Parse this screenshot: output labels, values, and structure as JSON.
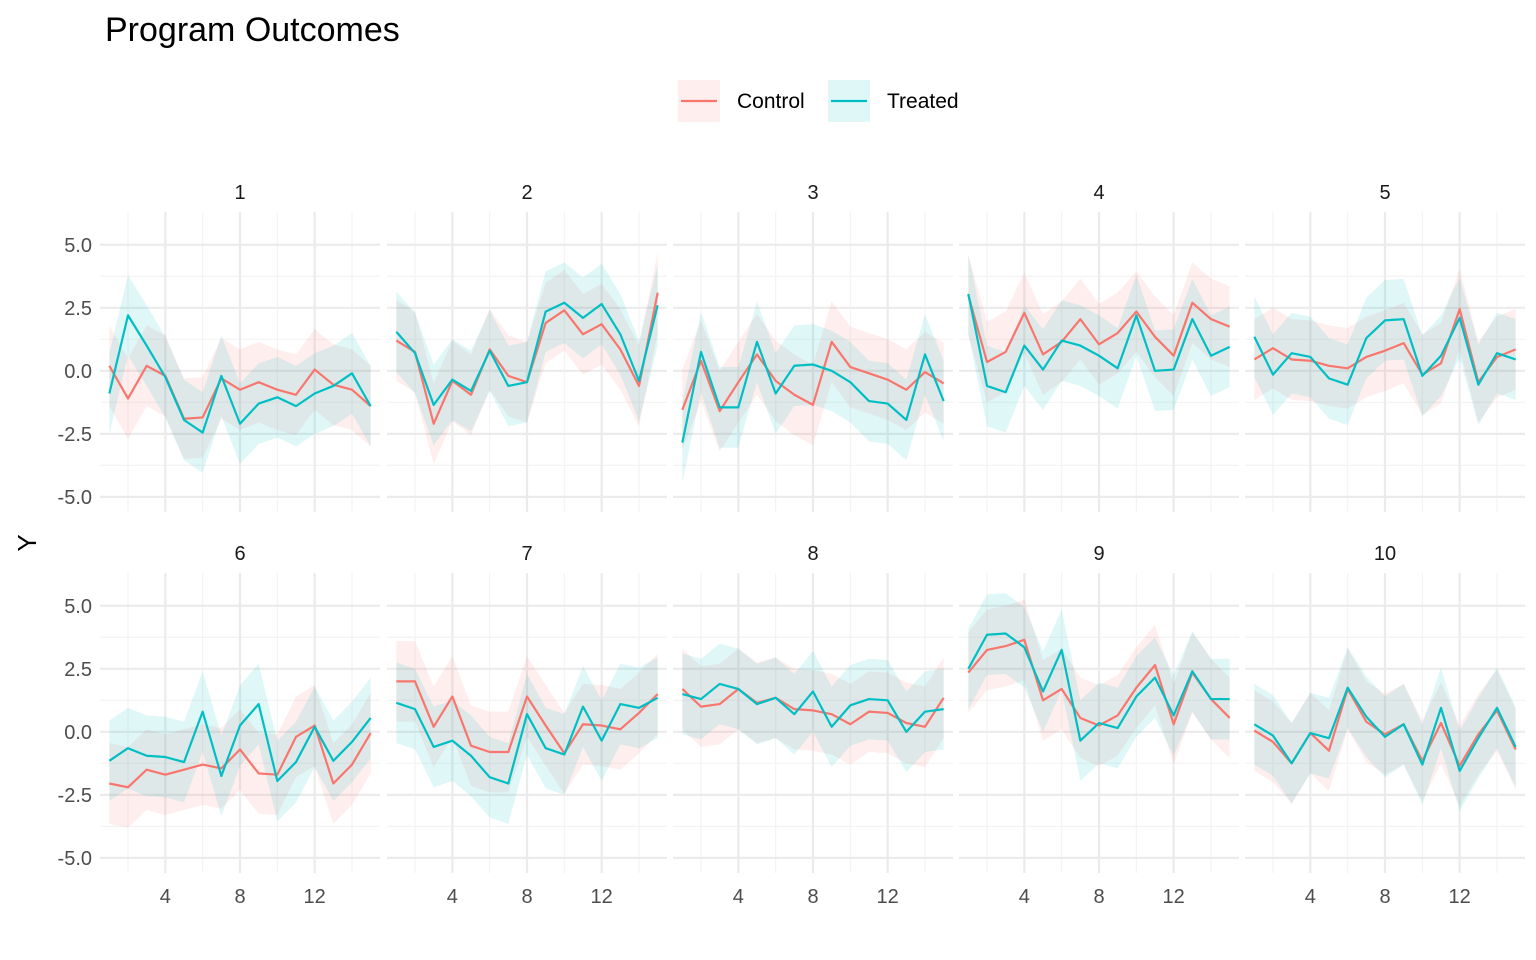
{
  "chart_data": {
    "type": "line",
    "title": "Program Outcomes",
    "ylabel": "Y",
    "xlabel": "",
    "x": [
      1,
      2,
      3,
      4,
      5,
      6,
      7,
      8,
      9,
      10,
      11,
      12,
      13,
      14,
      15
    ],
    "xlim": [
      0.5,
      15.5
    ],
    "ylim": [
      -5.6,
      6.3
    ],
    "x_ticks": [
      4,
      8,
      12
    ],
    "y_ticks": [
      5,
      2.5,
      0,
      -2.5,
      -5
    ],
    "y_tick_labels": [
      "5.0",
      "2.5",
      "0.0",
      "-2.5",
      "-5.0"
    ],
    "grid": true,
    "legend_position": "top",
    "series_meta": [
      {
        "name": "Control",
        "color": "#F8766D"
      },
      {
        "name": "Treated",
        "color": "#00BFC4"
      }
    ],
    "ribbon_halfwidth": 1.6,
    "facets": [
      {
        "label": "1",
        "control": [
          0.2,
          -1.1,
          0.2,
          -0.2,
          -1.9,
          -1.85,
          -0.3,
          -0.75,
          -0.45,
          -0.75,
          -0.95,
          0.05,
          -0.55,
          -0.75,
          -1.4
        ],
        "treated": [
          -0.9,
          2.2,
          1.0,
          -0.25,
          -1.95,
          -2.45,
          -0.2,
          -2.1,
          -1.3,
          -1.05,
          -1.4,
          -0.9,
          -0.6,
          -0.1,
          -1.4
        ]
      },
      {
        "label": "2",
        "control": [
          1.2,
          0.75,
          -2.1,
          -0.4,
          -0.95,
          0.85,
          -0.2,
          -0.45,
          1.9,
          2.4,
          1.45,
          1.85,
          0.85,
          -0.6,
          3.1
        ],
        "treated": [
          1.55,
          0.7,
          -1.35,
          -0.35,
          -0.8,
          0.8,
          -0.6,
          -0.45,
          2.35,
          2.7,
          2.1,
          2.65,
          1.45,
          -0.4,
          2.6
        ]
      },
      {
        "label": "3",
        "control": [
          -1.55,
          0.4,
          -1.6,
          -0.45,
          0.65,
          -0.4,
          -0.95,
          -1.35,
          1.15,
          0.15,
          -0.1,
          -0.35,
          -0.75,
          -0.05,
          -0.5
        ],
        "treated": [
          -2.85,
          0.75,
          -1.45,
          -1.45,
          1.15,
          -0.9,
          0.2,
          0.25,
          0.0,
          -0.45,
          -1.2,
          -1.3,
          -1.95,
          0.65,
          -1.2
        ]
      },
      {
        "label": "4",
        "control": [
          3.0,
          0.35,
          0.75,
          2.3,
          0.65,
          1.15,
          2.05,
          1.05,
          1.5,
          2.35,
          1.35,
          0.6,
          2.7,
          2.05,
          1.75
        ],
        "treated": [
          3.05,
          -0.6,
          -0.85,
          1.0,
          0.05,
          1.2,
          1.0,
          0.6,
          0.1,
          2.2,
          0.0,
          0.05,
          2.05,
          0.6,
          0.95
        ]
      },
      {
        "label": "5",
        "control": [
          0.45,
          0.9,
          0.45,
          0.4,
          0.2,
          0.1,
          0.55,
          0.8,
          1.1,
          -0.15,
          0.3,
          2.45,
          -0.45,
          0.55,
          0.85
        ],
        "treated": [
          1.35,
          -0.15,
          0.7,
          0.55,
          -0.3,
          -0.55,
          1.3,
          2.0,
          2.05,
          -0.2,
          0.6,
          2.1,
          -0.55,
          0.7,
          0.45
        ]
      },
      {
        "label": "6",
        "control": [
          -2.05,
          -2.2,
          -1.5,
          -1.7,
          -1.5,
          -1.3,
          -1.45,
          -0.7,
          -1.65,
          -1.7,
          -0.2,
          0.25,
          -2.05,
          -1.3,
          -0.05
        ],
        "treated": [
          -1.15,
          -0.65,
          -0.95,
          -1.0,
          -1.2,
          0.8,
          -1.75,
          0.25,
          1.1,
          -1.95,
          -1.2,
          0.2,
          -1.15,
          -0.4,
          0.55
        ]
      },
      {
        "label": "7",
        "control": [
          2.0,
          2.0,
          0.2,
          1.4,
          -0.55,
          -0.8,
          -0.8,
          1.4,
          0.25,
          -0.85,
          0.3,
          0.25,
          0.1,
          0.75,
          1.5
        ],
        "treated": [
          1.15,
          0.9,
          -0.6,
          -0.35,
          -0.95,
          -1.8,
          -2.05,
          0.7,
          -0.65,
          -0.9,
          1.0,
          -0.35,
          1.1,
          0.95,
          1.35
        ]
      },
      {
        "label": "8",
        "control": [
          1.7,
          1.0,
          1.1,
          1.7,
          1.15,
          1.35,
          0.9,
          0.85,
          0.7,
          0.3,
          0.8,
          0.75,
          0.35,
          0.2,
          1.35
        ],
        "treated": [
          1.5,
          1.3,
          1.9,
          1.7,
          1.1,
          1.35,
          0.7,
          1.6,
          0.2,
          1.05,
          1.3,
          1.25,
          0.0,
          0.8,
          0.9
        ]
      },
      {
        "label": "9",
        "control": [
          2.35,
          3.25,
          3.4,
          3.65,
          1.25,
          1.7,
          0.55,
          0.25,
          0.65,
          1.75,
          2.65,
          0.3,
          2.35,
          1.3,
          0.55
        ],
        "treated": [
          2.5,
          3.85,
          3.9,
          3.35,
          1.6,
          3.25,
          -0.35,
          0.35,
          0.15,
          1.4,
          2.15,
          0.65,
          2.4,
          1.3,
          1.3
        ]
      },
      {
        "label": "10",
        "control": [
          0.05,
          -0.4,
          -1.25,
          -0.05,
          -0.75,
          1.7,
          0.4,
          -0.1,
          0.3,
          -1.15,
          0.35,
          -1.35,
          -0.1,
          0.85,
          -0.7
        ],
        "treated": [
          0.3,
          -0.15,
          -1.25,
          -0.05,
          -0.25,
          1.75,
          0.6,
          -0.2,
          0.3,
          -1.3,
          0.95,
          -1.55,
          -0.25,
          0.95,
          -0.6
        ]
      }
    ]
  }
}
